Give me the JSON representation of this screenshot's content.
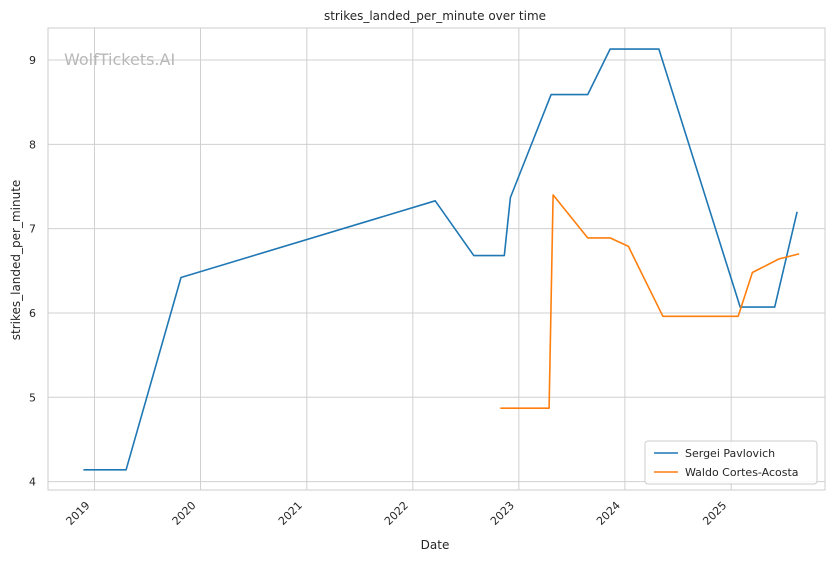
{
  "chart_data": {
    "type": "line",
    "title": "strikes_landed_per_minute over time",
    "xlabel": "Date",
    "ylabel": "strikes_landed_per_minute",
    "watermark": "WolfTickets.AI",
    "x_ticks": [
      "2019",
      "2020",
      "2021",
      "2022",
      "2023",
      "2024",
      "2025"
    ],
    "y_ticks": [
      "4",
      "5",
      "6",
      "7",
      "8",
      "9"
    ],
    "xlim": [
      "2018-07-25",
      "2025-11-20"
    ],
    "ylim": [
      3.9,
      9.38
    ],
    "grid": true,
    "legend_position": "lower-right",
    "series": [
      {
        "name": "Sergei Pavlovich",
        "color": "#1f77b4",
        "x": [
          "2018-11-24",
          "2019-04-20",
          "2019-10-26",
          "2022-03-19",
          "2022-07-30",
          "2022-11-12",
          "2022-12-03",
          "2023-04-22",
          "2023-08-26",
          "2023-11-11",
          "2024-04-27",
          "2025-02-01",
          "2025-05-31",
          "2025-08-16"
        ],
        "y": [
          4.14,
          4.14,
          6.42,
          7.33,
          6.68,
          6.68,
          7.37,
          8.59,
          8.59,
          9.13,
          9.13,
          6.07,
          6.07,
          7.2
        ]
      },
      {
        "name": "Waldo Cortes-Acosta",
        "color": "#ff7f0e",
        "x": [
          "2022-10-29",
          "2023-04-15",
          "2023-04-29",
          "2023-08-26",
          "2023-11-11",
          "2024-01-13",
          "2024-05-11",
          "2025-01-25",
          "2025-03-15",
          "2025-06-14",
          "2025-08-23"
        ],
        "y": [
          4.87,
          4.87,
          7.4,
          6.89,
          6.89,
          6.79,
          5.96,
          5.96,
          6.48,
          6.64,
          6.7
        ]
      }
    ]
  }
}
